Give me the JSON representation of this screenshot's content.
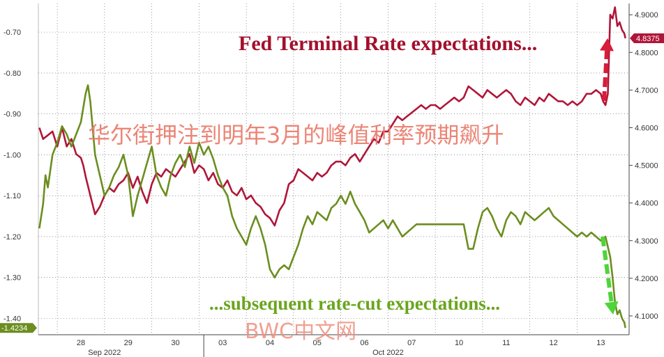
{
  "chart_data": {
    "type": "line",
    "annotations": {
      "fed": "Fed Terminal Rate expectations...",
      "cut": "...subsequent rate-cut expectations...",
      "overlay_cn": "华尔街押注到明年3月的峰值利率预期飙升",
      "watermark": "BWC中文网"
    },
    "left_axis": {
      "range": [
        -1.44,
        -0.63
      ],
      "ticks": [
        "-0.70",
        "-0.80",
        "-0.90",
        "-1.00",
        "-1.10",
        "-1.20",
        "-1.30",
        "-1.40"
      ],
      "tick_values": [
        -0.7,
        -0.8,
        -0.9,
        -1.0,
        -1.1,
        -1.2,
        -1.3,
        -1.4
      ],
      "last_value_label": "-1.4234",
      "last_value": -1.4234
    },
    "right_axis": {
      "range": [
        4.05,
        4.93
      ],
      "ticks": [
        "4.9000",
        "4.8000",
        "4.7000",
        "4.6000",
        "4.5000",
        "4.4000",
        "4.3000",
        "4.2000",
        "4.1000"
      ],
      "tick_values": [
        4.9,
        4.8,
        4.7,
        4.6,
        4.5,
        4.4,
        4.3,
        4.2,
        4.1
      ],
      "last_value_label": "4.8375",
      "last_value": 4.8375
    },
    "x_axis": {
      "ticks": [
        {
          "label": "28",
          "x": 3.5
        },
        {
          "label": "29",
          "x": 4.5
        },
        {
          "label": "30",
          "x": 5.5
        },
        {
          "label": "03",
          "x": 6.5
        },
        {
          "label": "04",
          "x": 7.5
        },
        {
          "label": "05",
          "x": 8.5
        },
        {
          "label": "06",
          "x": 9.5
        },
        {
          "label": "07",
          "x": 10.5
        },
        {
          "label": "10",
          "x": 11.5
        },
        {
          "label": "11",
          "x": 12.5
        },
        {
          "label": "12",
          "x": 13.5
        },
        {
          "label": "13",
          "x": 14.5
        }
      ],
      "months": [
        {
          "label": "Sep 2022",
          "x": 4.0
        },
        {
          "label": "Oct 2022",
          "x": 10.0
        }
      ],
      "range": [
        2.6,
        15.1
      ],
      "month_divider": 6.1
    },
    "grid": true,
    "series": [
      {
        "color": "#b01639",
        "axis": "right",
        "points": [
          [
            2.62,
            4.6
          ],
          [
            2.7,
            4.57
          ],
          [
            2.8,
            4.58
          ],
          [
            2.9,
            4.59
          ],
          [
            3.0,
            4.55
          ],
          [
            3.1,
            4.6
          ],
          [
            3.2,
            4.55
          ],
          [
            3.3,
            4.57
          ],
          [
            3.4,
            4.53
          ],
          [
            3.5,
            4.52
          ],
          [
            3.55,
            4.5
          ],
          [
            3.6,
            4.47
          ],
          [
            3.7,
            4.42
          ],
          [
            3.8,
            4.37
          ],
          [
            3.9,
            4.39
          ],
          [
            4.0,
            4.42
          ],
          [
            4.1,
            4.44
          ],
          [
            4.2,
            4.43
          ],
          [
            4.3,
            4.45
          ],
          [
            4.4,
            4.46
          ],
          [
            4.5,
            4.48
          ],
          [
            4.6,
            4.44
          ],
          [
            4.7,
            4.47
          ],
          [
            4.8,
            4.43
          ],
          [
            4.9,
            4.4
          ],
          [
            5.0,
            4.45
          ],
          [
            5.1,
            4.48
          ],
          [
            5.2,
            4.47
          ],
          [
            5.3,
            4.49
          ],
          [
            5.4,
            4.48
          ],
          [
            5.5,
            4.47
          ],
          [
            5.6,
            4.49
          ],
          [
            5.7,
            4.51
          ],
          [
            5.8,
            4.53
          ],
          [
            5.9,
            4.48
          ],
          [
            6.0,
            4.5
          ],
          [
            6.1,
            4.49
          ],
          [
            6.2,
            4.46
          ],
          [
            6.3,
            4.48
          ],
          [
            6.4,
            4.45
          ],
          [
            6.5,
            4.44
          ],
          [
            6.6,
            4.46
          ],
          [
            6.7,
            4.43
          ],
          [
            6.8,
            4.42
          ],
          [
            6.9,
            4.44
          ],
          [
            7.0,
            4.41
          ],
          [
            7.1,
            4.42
          ],
          [
            7.2,
            4.4
          ],
          [
            7.3,
            4.39
          ],
          [
            7.4,
            4.37
          ],
          [
            7.5,
            4.36
          ],
          [
            7.6,
            4.34
          ],
          [
            7.7,
            4.38
          ],
          [
            7.8,
            4.4
          ],
          [
            7.9,
            4.45
          ],
          [
            8.0,
            4.46
          ],
          [
            8.1,
            4.49
          ],
          [
            8.2,
            4.48
          ],
          [
            8.3,
            4.47
          ],
          [
            8.4,
            4.46
          ],
          [
            8.5,
            4.48
          ],
          [
            8.6,
            4.47
          ],
          [
            8.7,
            4.48
          ],
          [
            8.8,
            4.5
          ],
          [
            8.9,
            4.51
          ],
          [
            9.0,
            4.51
          ],
          [
            9.1,
            4.5
          ],
          [
            9.2,
            4.52
          ],
          [
            9.3,
            4.53
          ],
          [
            9.4,
            4.51
          ],
          [
            9.5,
            4.53
          ],
          [
            9.6,
            4.55
          ],
          [
            9.7,
            4.57
          ],
          [
            9.8,
            4.56
          ],
          [
            9.9,
            4.59
          ],
          [
            10.0,
            4.59
          ],
          [
            10.1,
            4.61
          ],
          [
            10.2,
            4.63
          ],
          [
            10.3,
            4.62
          ],
          [
            10.4,
            4.63
          ],
          [
            10.5,
            4.64
          ],
          [
            10.6,
            4.65
          ],
          [
            10.7,
            4.66
          ],
          [
            10.8,
            4.65
          ],
          [
            10.9,
            4.66
          ],
          [
            11.0,
            4.66
          ],
          [
            11.1,
            4.65
          ],
          [
            11.2,
            4.66
          ],
          [
            11.3,
            4.67
          ],
          [
            11.4,
            4.68
          ],
          [
            11.5,
            4.67
          ],
          [
            11.6,
            4.68
          ],
          [
            11.7,
            4.71
          ],
          [
            11.8,
            4.7
          ],
          [
            11.9,
            4.69
          ],
          [
            12.0,
            4.68
          ],
          [
            12.1,
            4.7
          ],
          [
            12.2,
            4.69
          ],
          [
            12.3,
            4.68
          ],
          [
            12.4,
            4.69
          ],
          [
            12.5,
            4.7
          ],
          [
            12.6,
            4.69
          ],
          [
            12.7,
            4.67
          ],
          [
            12.8,
            4.66
          ],
          [
            12.9,
            4.68
          ],
          [
            13.0,
            4.67
          ],
          [
            13.1,
            4.66
          ],
          [
            13.2,
            4.68
          ],
          [
            13.3,
            4.67
          ],
          [
            13.4,
            4.69
          ],
          [
            13.5,
            4.68
          ],
          [
            13.6,
            4.67
          ],
          [
            13.7,
            4.67
          ],
          [
            13.8,
            4.66
          ],
          [
            13.9,
            4.67
          ],
          [
            14.0,
            4.66
          ],
          [
            14.1,
            4.67
          ],
          [
            14.2,
            4.69
          ],
          [
            14.3,
            4.69
          ],
          [
            14.4,
            4.7
          ],
          [
            14.5,
            4.69
          ],
          [
            14.55,
            4.67
          ],
          [
            14.6,
            4.66
          ],
          [
            14.65,
            4.69
          ],
          [
            14.7,
            4.9
          ],
          [
            14.75,
            4.89
          ],
          [
            14.8,
            4.92
          ],
          [
            14.85,
            4.87
          ],
          [
            14.9,
            4.88
          ],
          [
            14.95,
            4.86
          ],
          [
            15.0,
            4.85
          ],
          [
            15.02,
            4.8375
          ]
        ]
      },
      {
        "color": "#6b8e1f",
        "axis": "left",
        "points": [
          [
            2.62,
            -1.18
          ],
          [
            2.7,
            -1.12
          ],
          [
            2.75,
            -1.05
          ],
          [
            2.8,
            -1.08
          ],
          [
            2.9,
            -1.0
          ],
          [
            3.0,
            -0.97
          ],
          [
            3.1,
            -0.93
          ],
          [
            3.2,
            -0.95
          ],
          [
            3.3,
            -0.98
          ],
          [
            3.4,
            -0.95
          ],
          [
            3.5,
            -0.92
          ],
          [
            3.6,
            -0.85
          ],
          [
            3.65,
            -0.83
          ],
          [
            3.7,
            -0.87
          ],
          [
            3.8,
            -1.0
          ],
          [
            3.9,
            -1.05
          ],
          [
            4.0,
            -1.1
          ],
          [
            4.1,
            -1.08
          ],
          [
            4.2,
            -1.05
          ],
          [
            4.3,
            -1.03
          ],
          [
            4.4,
            -1.0
          ],
          [
            4.5,
            -1.05
          ],
          [
            4.6,
            -1.15
          ],
          [
            4.7,
            -1.1
          ],
          [
            4.8,
            -1.06
          ],
          [
            4.9,
            -1.02
          ],
          [
            5.0,
            -0.98
          ],
          [
            5.1,
            -1.05
          ],
          [
            5.2,
            -1.08
          ],
          [
            5.3,
            -1.1
          ],
          [
            5.4,
            -1.05
          ],
          [
            5.5,
            -1.02
          ],
          [
            5.6,
            -1.0
          ],
          [
            5.7,
            -1.03
          ],
          [
            5.8,
            -0.98
          ],
          [
            5.9,
            -1.02
          ],
          [
            6.0,
            -0.97
          ],
          [
            6.1,
            -1.0
          ],
          [
            6.2,
            -0.98
          ],
          [
            6.3,
            -1.01
          ],
          [
            6.4,
            -1.05
          ],
          [
            6.5,
            -1.08
          ],
          [
            6.6,
            -1.1
          ],
          [
            6.7,
            -1.15
          ],
          [
            6.8,
            -1.18
          ],
          [
            6.9,
            -1.2
          ],
          [
            7.0,
            -1.22
          ],
          [
            7.1,
            -1.18
          ],
          [
            7.2,
            -1.15
          ],
          [
            7.3,
            -1.18
          ],
          [
            7.4,
            -1.22
          ],
          [
            7.5,
            -1.28
          ],
          [
            7.6,
            -1.3
          ],
          [
            7.7,
            -1.28
          ],
          [
            7.8,
            -1.27
          ],
          [
            7.9,
            -1.28
          ],
          [
            8.0,
            -1.25
          ],
          [
            8.1,
            -1.22
          ],
          [
            8.2,
            -1.18
          ],
          [
            8.3,
            -1.15
          ],
          [
            8.4,
            -1.17
          ],
          [
            8.5,
            -1.14
          ],
          [
            8.6,
            -1.15
          ],
          [
            8.7,
            -1.16
          ],
          [
            8.8,
            -1.13
          ],
          [
            8.9,
            -1.12
          ],
          [
            9.0,
            -1.1
          ],
          [
            9.1,
            -1.12
          ],
          [
            9.2,
            -1.09
          ],
          [
            9.3,
            -1.12
          ],
          [
            9.4,
            -1.14
          ],
          [
            9.5,
            -1.16
          ],
          [
            9.6,
            -1.19
          ],
          [
            9.7,
            -1.18
          ],
          [
            9.8,
            -1.17
          ],
          [
            9.9,
            -1.16
          ],
          [
            10.0,
            -1.18
          ],
          [
            10.1,
            -1.16
          ],
          [
            10.2,
            -1.18
          ],
          [
            10.3,
            -1.2
          ],
          [
            10.4,
            -1.19
          ],
          [
            10.5,
            -1.18
          ],
          [
            10.6,
            -1.17
          ],
          [
            10.7,
            -1.17
          ],
          [
            11.0,
            -1.17
          ],
          [
            11.3,
            -1.17
          ],
          [
            11.6,
            -1.17
          ],
          [
            11.7,
            -1.23
          ],
          [
            11.8,
            -1.23
          ],
          [
            11.9,
            -1.18
          ],
          [
            12.0,
            -1.14
          ],
          [
            12.1,
            -1.13
          ],
          [
            12.2,
            -1.15
          ],
          [
            12.3,
            -1.18
          ],
          [
            12.4,
            -1.2
          ],
          [
            12.5,
            -1.16
          ],
          [
            12.6,
            -1.14
          ],
          [
            12.7,
            -1.15
          ],
          [
            12.8,
            -1.17
          ],
          [
            12.9,
            -1.14
          ],
          [
            13.0,
            -1.15
          ],
          [
            13.1,
            -1.16
          ],
          [
            13.2,
            -1.15
          ],
          [
            13.3,
            -1.14
          ],
          [
            13.4,
            -1.13
          ],
          [
            13.5,
            -1.15
          ],
          [
            13.6,
            -1.16
          ],
          [
            13.7,
            -1.17
          ],
          [
            13.8,
            -1.18
          ],
          [
            13.9,
            -1.19
          ],
          [
            14.0,
            -1.2
          ],
          [
            14.1,
            -1.19
          ],
          [
            14.2,
            -1.2
          ],
          [
            14.3,
            -1.19
          ],
          [
            14.4,
            -1.2
          ],
          [
            14.5,
            -1.21
          ],
          [
            14.6,
            -1.2
          ],
          [
            14.7,
            -1.25
          ],
          [
            14.75,
            -1.3
          ],
          [
            14.8,
            -1.36
          ],
          [
            14.85,
            -1.39
          ],
          [
            14.9,
            -1.38
          ],
          [
            14.95,
            -1.4
          ],
          [
            15.0,
            -1.41
          ],
          [
            15.02,
            -1.4234
          ]
        ]
      }
    ]
  },
  "colors": {
    "red": "#b01639",
    "green": "#6b8e1f",
    "red_arrow": "#d81c3a",
    "green_arrow": "#4fd43a",
    "grid": "#555555"
  }
}
